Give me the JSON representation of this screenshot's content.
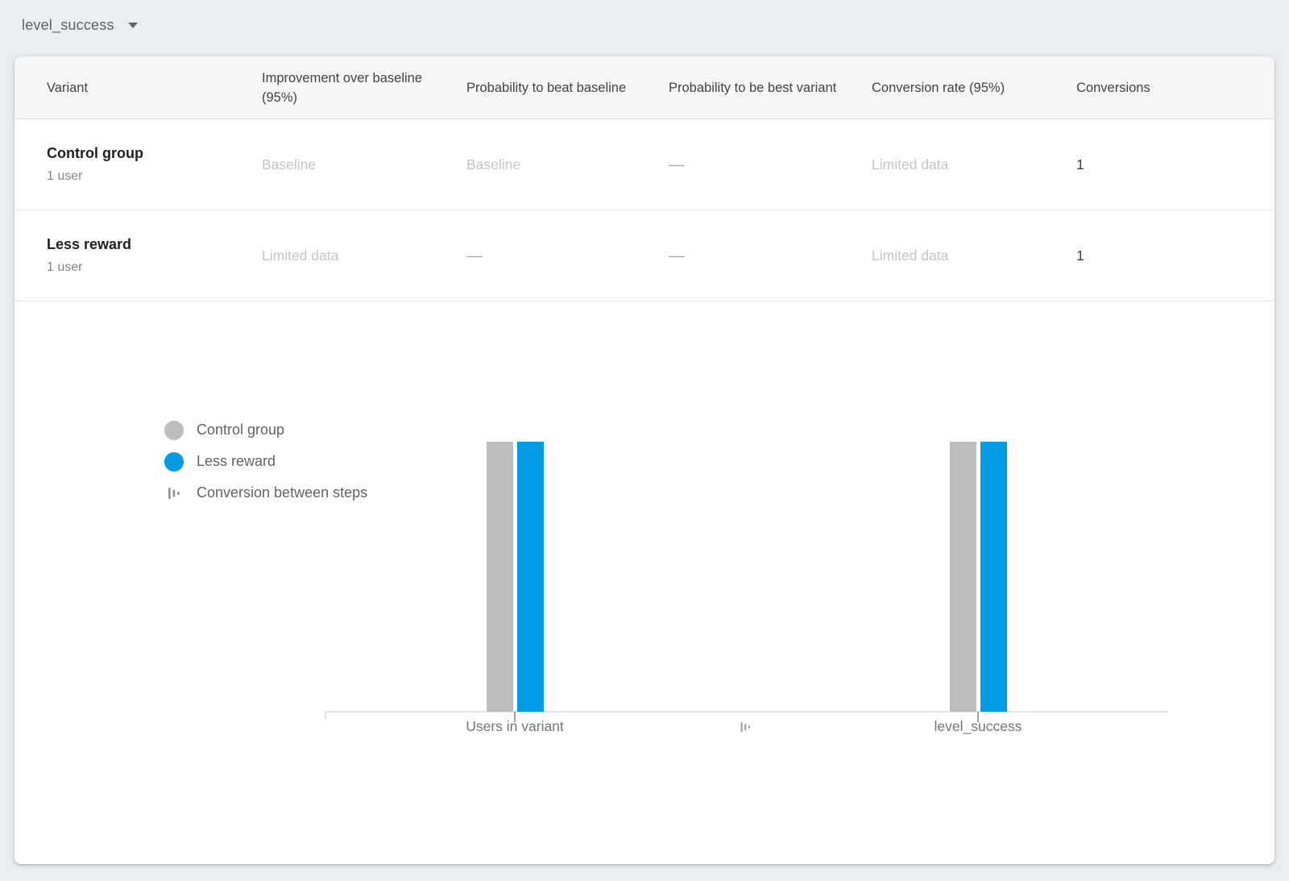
{
  "toolbar": {
    "metric_selector": {
      "value": "level_success"
    }
  },
  "table": {
    "columns": [
      "Variant",
      "Improvement over baseline (95%)",
      "Probability to beat baseline",
      "Probability to be best variant",
      "Conversion rate (95%)",
      "Conversions"
    ],
    "rows": [
      {
        "variant": "Control group",
        "users": "1 user",
        "improvement": "Baseline",
        "prob_beat_baseline": "Baseline",
        "prob_best_variant": "––",
        "conversion_rate": "Limited data",
        "conversions": "1"
      },
      {
        "variant": "Less reward",
        "users": "1 user",
        "improvement": "Limited data",
        "prob_beat_baseline": "––",
        "prob_best_variant": "––",
        "conversion_rate": "Limited data",
        "conversions": "1"
      }
    ]
  },
  "chart": {
    "legend": [
      {
        "label": "Control group",
        "swatch": "circle",
        "color": "#bdbdbd"
      },
      {
        "label": "Less reward",
        "swatch": "circle",
        "color": "#039be5"
      },
      {
        "label": "Conversion between steps",
        "swatch": "steps-icon",
        "color": "#8f8f8f"
      }
    ]
  },
  "chart_data": {
    "type": "bar",
    "title": "",
    "xlabel": "",
    "ylabel": "",
    "categories": [
      "Users in variant",
      "level_success"
    ],
    "series": [
      {
        "name": "Control group",
        "color": "#bdbdbd",
        "values": [
          1,
          1
        ]
      },
      {
        "name": "Less reward",
        "color": "#039be5",
        "values": [
          1,
          1
        ]
      }
    ],
    "ylim": [
      0,
      1
    ],
    "grid": false,
    "legend_position": "left"
  },
  "colors": {
    "page_background": "#eaeef1",
    "card_background": "#ffffff",
    "accent_blue": "#039be5",
    "control_gray": "#bdbdbd"
  }
}
